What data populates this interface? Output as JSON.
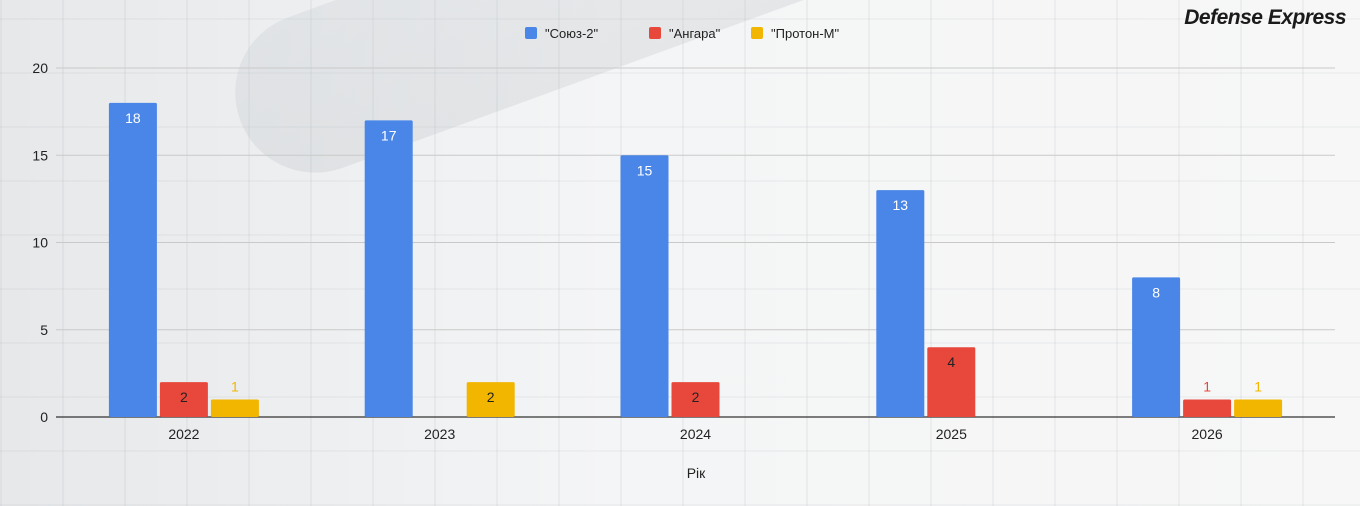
{
  "brand": "Defense Express",
  "chart_data": {
    "type": "bar",
    "categories": [
      "2022",
      "2023",
      "2024",
      "2025",
      "2026"
    ],
    "series": [
      {
        "name": "\"Союз-2\"",
        "values": [
          18,
          17,
          15,
          13,
          8
        ],
        "color": "#4a86e8",
        "label_color": "#ffffff"
      },
      {
        "name": "\"Ангара\"",
        "values": [
          2,
          0,
          2,
          4,
          1
        ],
        "color": "#e8483b",
        "label_color": "#e8483b"
      },
      {
        "name": "\"Протон-М\"",
        "values": [
          1,
          2,
          0,
          0,
          1
        ],
        "color": "#f2b600",
        "label_color": "#f2b600"
      }
    ],
    "y_ticks": [
      "0",
      "5",
      "10",
      "15",
      "20"
    ],
    "ylim": [
      0,
      20
    ],
    "xlabel": "Рік",
    "ylabel": "",
    "grid": true,
    "legend_position": "top-center"
  }
}
